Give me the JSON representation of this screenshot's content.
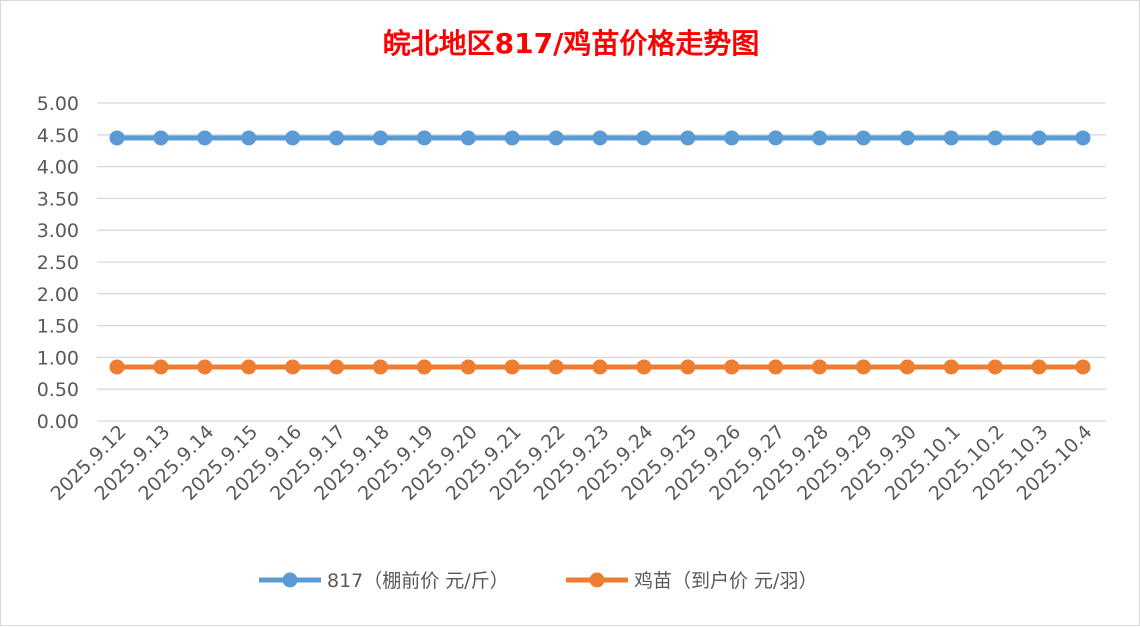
{
  "chart_data": {
    "type": "line",
    "title": "皖北地区817/鸡苗价格走势图",
    "xlabel": "",
    "ylabel": "",
    "ylim": [
      0,
      5
    ],
    "yticks": [
      "0.00",
      "0.50",
      "1.00",
      "1.50",
      "2.00",
      "2.50",
      "3.00",
      "3.50",
      "4.00",
      "4.50",
      "5.00"
    ],
    "grid": true,
    "legend_position": "bottom",
    "categories": [
      "2025.9.12",
      "2025.9.13",
      "2025.9.14",
      "2025.9.15",
      "2025.9.16",
      "2025.9.17",
      "2025.9.18",
      "2025.9.19",
      "2025.9.20",
      "2025.9.21",
      "2025.9.22",
      "2025.9.23",
      "2025.9.24",
      "2025.9.25",
      "2025.9.26",
      "2025.9.27",
      "2025.9.28",
      "2025.9.29",
      "2025.9.30",
      "2025.10.1",
      "2025.10.2",
      "2025.10.3",
      "2025.10.4"
    ],
    "series": [
      {
        "name": "817（棚前价 元/斤）",
        "color": "#5b9bd5",
        "values": [
          4.45,
          4.45,
          4.45,
          4.45,
          4.45,
          4.45,
          4.45,
          4.45,
          4.45,
          4.45,
          4.45,
          4.45,
          4.45,
          4.45,
          4.45,
          4.45,
          4.45,
          4.45,
          4.45,
          4.45,
          4.45,
          4.45,
          4.45
        ]
      },
      {
        "name": "鸡苗（到户价 元/羽）",
        "color": "#ed7d31",
        "values": [
          0.85,
          0.85,
          0.85,
          0.85,
          0.85,
          0.85,
          0.85,
          0.85,
          0.85,
          0.85,
          0.85,
          0.85,
          0.85,
          0.85,
          0.85,
          0.85,
          0.85,
          0.85,
          0.85,
          0.85,
          0.85,
          0.85,
          0.85
        ]
      }
    ]
  }
}
